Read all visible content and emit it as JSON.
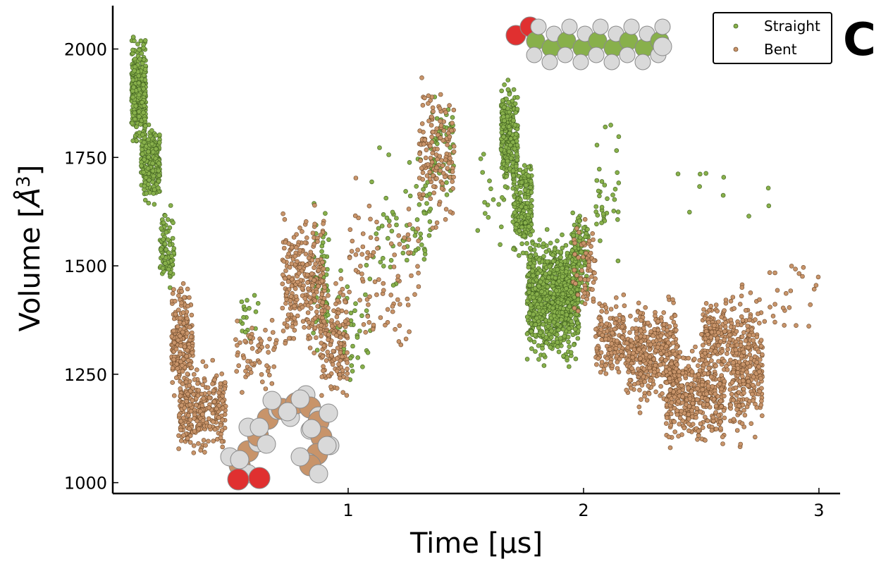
{
  "chart_data": {
    "type": "scatter",
    "title": "",
    "xlabel": "Time [µs]",
    "ylabel": "Volume [Å³]",
    "ylabel_parts": [
      "Volume [",
      "Å",
      "3",
      "]"
    ],
    "panel_label": "C",
    "xlim": [
      0,
      3.09
    ],
    "ylim": [
      975,
      2100
    ],
    "x_ticks": [
      1,
      2,
      3
    ],
    "x_tick_labels": [
      "1",
      "2",
      "3"
    ],
    "y_ticks": [
      1000,
      1250,
      1500,
      1750,
      2000
    ],
    "y_tick_labels": [
      "1000",
      "1250",
      "1500",
      "1750",
      "2000"
    ],
    "grid": false,
    "legend_position": "top-right",
    "series": [
      {
        "name": "Straight",
        "color": "#88b04b",
        "stroke": "#3f5f1f",
        "clusters": [
          {
            "x": [
              0.08,
              0.14
            ],
            "y": [
              1750,
              2050
            ],
            "n": 380
          },
          {
            "x": [
              0.12,
              0.2
            ],
            "y": [
              1620,
              1860
            ],
            "n": 240
          },
          {
            "x": [
              0.2,
              0.26
            ],
            "y": [
              1420,
              1650
            ],
            "n": 90
          },
          {
            "x": [
              0.54,
              0.62
            ],
            "y": [
              1300,
              1500
            ],
            "n": 18
          },
          {
            "x": [
              0.85,
              0.92
            ],
            "y": [
              1250,
              1700
            ],
            "n": 60
          },
          {
            "x": [
              0.95,
              1.1
            ],
            "y": [
              1200,
              1560
            ],
            "n": 40
          },
          {
            "x": [
              1.1,
              1.35
            ],
            "y": [
              1400,
              1800
            ],
            "n": 70
          },
          {
            "x": [
              1.35,
              1.45
            ],
            "y": [
              1600,
              1930
            ],
            "n": 60
          },
          {
            "x": [
              1.55,
              1.7
            ],
            "y": [
              1500,
              1900
            ],
            "n": 25
          },
          {
            "x": [
              1.65,
              1.72
            ],
            "y": [
              1650,
              1950
            ],
            "n": 280
          },
          {
            "x": [
              1.7,
              1.78
            ],
            "y": [
              1500,
              1780
            ],
            "n": 220
          },
          {
            "x": [
              1.76,
              1.98
            ],
            "y": [
              1250,
              1600
            ],
            "n": 900
          },
          {
            "x": [
              1.95,
              2.02
            ],
            "y": [
              1400,
              1650
            ],
            "n": 120
          },
          {
            "x": [
              2.05,
              2.15
            ],
            "y": [
              1450,
              1900
            ],
            "n": 35
          },
          {
            "x": [
              2.4,
              2.8
            ],
            "y": [
              1550,
              1800
            ],
            "n": 10
          }
        ]
      },
      {
        "name": "Bent",
        "color": "#c8946a",
        "stroke": "#6e4a2a",
        "clusters": [
          {
            "x": [
              0.25,
              0.34
            ],
            "y": [
              1150,
              1500
            ],
            "n": 220
          },
          {
            "x": [
              0.28,
              0.48
            ],
            "y": [
              1030,
              1300
            ],
            "n": 300
          },
          {
            "x": [
              0.52,
              0.7
            ],
            "y": [
              1180,
              1400
            ],
            "n": 60
          },
          {
            "x": [
              0.72,
              0.9
            ],
            "y": [
              1260,
              1680
            ],
            "n": 260
          },
          {
            "x": [
              0.88,
              1.0
            ],
            "y": [
              1150,
              1500
            ],
            "n": 160
          },
          {
            "x": [
              1.0,
              1.3
            ],
            "y": [
              1250,
              1750
            ],
            "n": 90
          },
          {
            "x": [
              1.3,
              1.45
            ],
            "y": [
              1550,
              1990
            ],
            "n": 150
          },
          {
            "x": [
              1.95,
              2.05
            ],
            "y": [
              1350,
              1650
            ],
            "n": 60
          },
          {
            "x": [
              2.05,
              2.18
            ],
            "y": [
              1220,
              1450
            ],
            "n": 160
          },
          {
            "x": [
              2.18,
              2.4
            ],
            "y": [
              1150,
              1450
            ],
            "n": 400
          },
          {
            "x": [
              2.35,
              2.6
            ],
            "y": [
              1050,
              1350
            ],
            "n": 420
          },
          {
            "x": [
              2.5,
              2.62
            ],
            "y": [
              1200,
              1450
            ],
            "n": 160
          },
          {
            "x": [
              2.62,
              2.76
            ],
            "y": [
              1050,
              1480
            ],
            "n": 300
          },
          {
            "x": [
              2.76,
              3.0
            ],
            "y": [
              1300,
              1560
            ],
            "n": 25
          }
        ]
      }
    ]
  },
  "molecules": {
    "straight": {
      "carbon_color": "#88b04b",
      "hydrogen_color": "#d9d9d9",
      "oxygen_color": "#e03030"
    },
    "bent": {
      "carbon_color": "#c8946a",
      "hydrogen_color": "#d9d9d9",
      "oxygen_color": "#e03030"
    }
  }
}
